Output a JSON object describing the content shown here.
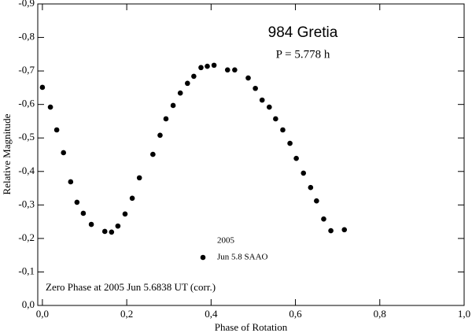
{
  "chart_data": {
    "type": "scatter",
    "title": "984 Gretia",
    "subtitle": "P = 5.778 h",
    "x_label": "Phase of Rotation",
    "y_label": "Relative Magnitude",
    "annotation": "Zero Phase at 2005 Jun 5.6838 UT (corr.)",
    "legend_title": "2005",
    "xlim": [
      -0.011,
      1.0
    ],
    "ylim": [
      0,
      -0.9
    ],
    "xticks": [
      {
        "value": 0,
        "label": "0,0"
      },
      {
        "value": 0.2,
        "label": "0,2"
      },
      {
        "value": 0.4,
        "label": "0,4"
      },
      {
        "value": 0.6,
        "label": "0,6"
      },
      {
        "value": 0.8,
        "label": "0,8"
      },
      {
        "value": 1.0,
        "label": "1,0"
      }
    ],
    "yticks": [
      {
        "value": 0,
        "label": "0,0"
      },
      {
        "value": -0.1,
        "label": "-0,1"
      },
      {
        "value": -0.2,
        "label": "-0,2"
      },
      {
        "value": -0.3,
        "label": "-0,3"
      },
      {
        "value": -0.4,
        "label": "-0,4"
      },
      {
        "value": -0.5,
        "label": "-0,5"
      },
      {
        "value": -0.6,
        "label": "-0,6"
      },
      {
        "value": -0.7,
        "label": "-0,7"
      },
      {
        "value": -0.8,
        "label": "-0,8"
      },
      {
        "value": -0.9,
        "label": "-0,9"
      }
    ],
    "series": [
      {
        "name": "Jun 5.8 SAAO",
        "color": "#000000",
        "x": [
          0,
          0.019,
          0.034,
          0.05,
          0.067,
          0.082,
          0.097,
          0.116,
          0.148,
          0.164,
          0.179,
          0.196,
          0.213,
          0.23,
          0.262,
          0.279,
          0.293,
          0.31,
          0.327,
          0.344,
          0.359,
          0.376,
          0.391,
          0.407,
          0.439,
          0.456,
          0.488,
          0.505,
          0.521,
          0.538,
          0.553,
          0.57,
          0.587,
          0.602,
          0.619,
          0.636,
          0.65,
          0.667,
          0.684,
          0.716
        ],
        "values": [
          -0.651,
          -0.592,
          -0.524,
          -0.456,
          -0.369,
          -0.308,
          -0.275,
          -0.242,
          -0.221,
          -0.219,
          -0.237,
          -0.273,
          -0.32,
          -0.381,
          -0.451,
          -0.508,
          -0.557,
          -0.597,
          -0.634,
          -0.663,
          -0.684,
          -0.71,
          -0.714,
          -0.717,
          -0.703,
          -0.703,
          -0.679,
          -0.648,
          -0.613,
          -0.592,
          -0.557,
          -0.524,
          -0.484,
          -0.439,
          -0.395,
          -0.352,
          -0.312,
          -0.258,
          -0.223,
          -0.226
        ]
      }
    ]
  }
}
